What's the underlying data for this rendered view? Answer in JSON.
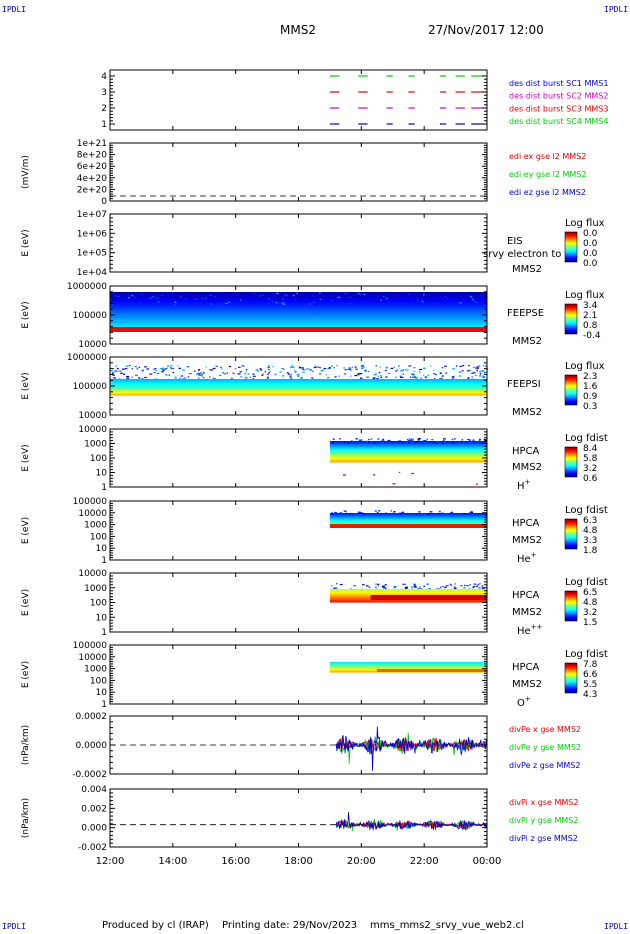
{
  "header": {
    "corner_label": "IPDLI",
    "spacecraft": "MMS2",
    "datetime": "27/Nov/2017 12:00"
  },
  "footer": {
    "produced_by": "Produced by cl (IRAP)",
    "printing_date": "Printing date: 29/Nov/2023",
    "filename": "mms_mms2_srvy_vue_web2.cl"
  },
  "colors": {
    "blue": "#0000cc",
    "red": "#dd0000",
    "green": "#00cc00",
    "magenta": "#cc00cc"
  },
  "chart_data": {
    "type": "line",
    "x_ticks": [
      "12:00",
      "14:00",
      "16:00",
      "18:00",
      "20:00",
      "22:00",
      "00:00"
    ],
    "x_range_hours": [
      12,
      24
    ],
    "panels": [
      {
        "id": "availability",
        "ylabel": "",
        "y_ticks": [
          "4",
          "3",
          "2",
          "1"
        ],
        "series": [
          {
            "name": "des dist burst SC1 MMS1",
            "color": "#0000cc",
            "level": 1
          },
          {
            "name": "des dist burst SC2 MMS2",
            "color": "#cc00cc",
            "level": 2
          },
          {
            "name": "des dist burst SC3 MMS3",
            "color": "#dd0000",
            "level": 3
          },
          {
            "name": "des dist burst SC4 MMS4",
            "color": "#00cc00",
            "level": 4
          }
        ],
        "segments_hours": [
          [
            19.0,
            19.3
          ],
          [
            19.9,
            20.2
          ],
          [
            20.8,
            21.0
          ],
          [
            21.5,
            21.7
          ],
          [
            22.5,
            22.7
          ],
          [
            23.0,
            23.3
          ],
          [
            23.5,
            23.9
          ]
        ]
      },
      {
        "id": "edi",
        "ylabel": "(mV/m)",
        "y_ticks": [
          "1e+21",
          "8e+20",
          "6e+20",
          "4e+20",
          "2e+20",
          "0"
        ],
        "series": [
          {
            "name": "edi ex gse l2 MMS2",
            "color": "#dd0000"
          },
          {
            "name": "edi ey gse l2 MMS2",
            "color": "#00cc00"
          },
          {
            "name": "edi ez gse l2 MMS2",
            "color": "#0000cc"
          }
        ]
      },
      {
        "id": "eis",
        "ylabel": "E (eV)",
        "y_ticks": [
          "1e+07",
          "1e+06",
          "1e+05",
          "1e+04"
        ],
        "instrument": "EIS",
        "spacecraft": "MMS2",
        "overlay": "srvy electron to",
        "cbar_title": "Log flux",
        "cbar_ticks": [
          "0.0",
          "0.0",
          "0.0",
          "0.0"
        ]
      },
      {
        "id": "feepse",
        "ylabel": "E (eV)",
        "y_ticks": [
          "1000000",
          "100000",
          "10000"
        ],
        "instrument": "FEEPSE",
        "spacecraft": "MMS2",
        "cbar_title": "Log flux",
        "cbar_ticks": [
          "3.4",
          "2.1",
          "0.8",
          "-0.4"
        ]
      },
      {
        "id": "feepsi",
        "ylabel": "E (eV)",
        "y_ticks": [
          "1000000",
          "100000",
          "10000"
        ],
        "instrument": "FEEPSI",
        "spacecraft": "MMS2",
        "cbar_title": "Log flux",
        "cbar_ticks": [
          "2.3",
          "1.6",
          "0.9",
          "0.3"
        ]
      },
      {
        "id": "hpca_h",
        "ylabel": "E (eV)",
        "y_ticks": [
          "10000",
          "1000",
          "100",
          "10",
          "1"
        ],
        "instrument": "HPCA",
        "spacecraft": "MMS2",
        "species": "H",
        "species_sup": "+",
        "cbar_title": "Log fdist",
        "cbar_ticks": [
          "8.4",
          "5.8",
          "3.2",
          "0.6"
        ]
      },
      {
        "id": "hpca_he1",
        "ylabel": "E (eV)",
        "y_ticks": [
          "100000",
          "10000",
          "1000",
          "100",
          "10",
          "1"
        ],
        "instrument": "HPCA",
        "spacecraft": "MMS2",
        "species": "He",
        "species_sup": "+",
        "cbar_title": "Log fdist",
        "cbar_ticks": [
          "6.3",
          "4.8",
          "3.3",
          "1.8"
        ]
      },
      {
        "id": "hpca_he2",
        "ylabel": "E (eV)",
        "y_ticks": [
          "10000",
          "1000",
          "100",
          "10",
          "1"
        ],
        "instrument": "HPCA",
        "spacecraft": "MMS2",
        "species": "He",
        "species_sup": "++",
        "cbar_title": "Log fdist",
        "cbar_ticks": [
          "6.5",
          "4.8",
          "3.2",
          "1.5"
        ]
      },
      {
        "id": "hpca_o",
        "ylabel": "E (eV)",
        "y_ticks": [
          "100000",
          "10000",
          "1000",
          "100",
          "10",
          "1"
        ],
        "instrument": "HPCA",
        "spacecraft": "MMS2",
        "species": "O",
        "species_sup": "+",
        "cbar_title": "Log fdist",
        "cbar_ticks": [
          "7.8",
          "6.6",
          "5.5",
          "4.3"
        ]
      },
      {
        "id": "divpe",
        "ylabel": "(nPa/km)",
        "y_ticks": [
          "0.0002",
          "0.0000",
          "-0.0002"
        ],
        "y_range": [
          -0.0003,
          0.0003
        ],
        "series": [
          {
            "name": "divPe x gse MMS2",
            "color": "#dd0000"
          },
          {
            "name": "divPe y gse MMS2",
            "color": "#00cc00"
          },
          {
            "name": "divPe z gse MMS2",
            "color": "#0000cc"
          }
        ]
      },
      {
        "id": "divpi",
        "ylabel": "(nPa/km)",
        "y_ticks": [
          "0.004",
          "0.002",
          "0.000",
          "-0.002"
        ],
        "y_range": [
          -0.0025,
          0.004
        ],
        "series": [
          {
            "name": "divPi x gse MMS2",
            "color": "#dd0000"
          },
          {
            "name": "divPi y gse MMS2",
            "color": "#00cc00"
          },
          {
            "name": "divPi z gse MMS2",
            "color": "#0000cc"
          }
        ]
      }
    ]
  }
}
